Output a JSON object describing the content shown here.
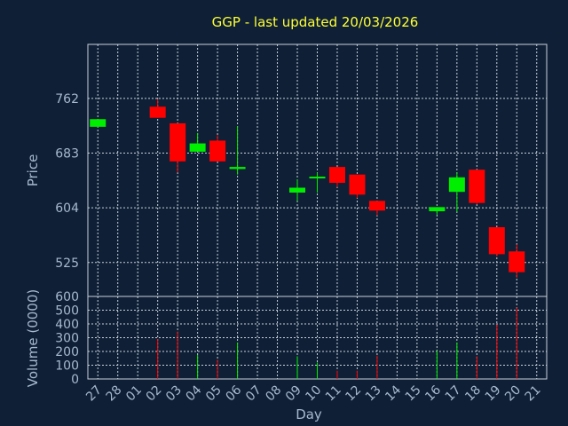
{
  "chart_data": {
    "type": "candlestick",
    "title": "GGP - last updated 20/03/2026",
    "ylabel_price": "Price",
    "ylabel_volume": "Volume (0000)",
    "xlabel": "Day",
    "price_ticks": [
      525,
      604,
      683,
      762
    ],
    "price_ylim": [
      476,
      840
    ],
    "volume_ticks": [
      0,
      100,
      200,
      300,
      400,
      500,
      600
    ],
    "volume_ylim": [
      0,
      600
    ],
    "x_ticks": [
      "27",
      "28",
      "01",
      "02",
      "03",
      "04",
      "05",
      "06",
      "07",
      "08",
      "09",
      "10",
      "11",
      "12",
      "13",
      "14",
      "15",
      "16",
      "17",
      "18",
      "19",
      "20",
      "21"
    ],
    "grid": true,
    "up_color": "#00ee00",
    "down_color": "#ff0000",
    "candles": [
      {
        "day": "27",
        "open": 721,
        "close": 732,
        "high": 732,
        "low": 721,
        "volume": 0
      },
      {
        "day": "02",
        "open": 750,
        "close": 734,
        "high": 761,
        "low": 734,
        "volume": 290
      },
      {
        "day": "03",
        "open": 726,
        "close": 671,
        "high": 726,
        "low": 655,
        "volume": 345
      },
      {
        "day": "04",
        "open": 685,
        "close": 697,
        "high": 712,
        "low": 685,
        "volume": 175
      },
      {
        "day": "05",
        "open": 701,
        "close": 671,
        "high": 709,
        "low": 671,
        "volume": 140
      },
      {
        "day": "06",
        "open": 660,
        "close": 663,
        "high": 722,
        "low": 652,
        "volume": 265
      },
      {
        "day": "09",
        "open": 626,
        "close": 633,
        "high": 645,
        "low": 614,
        "volume": 165
      },
      {
        "day": "10",
        "open": 647,
        "close": 649,
        "high": 655,
        "low": 626,
        "volume": 120
      },
      {
        "day": "11",
        "open": 663,
        "close": 640,
        "high": 663,
        "low": 634,
        "volume": 60
      },
      {
        "day": "12",
        "open": 652,
        "close": 623,
        "high": 652,
        "low": 618,
        "volume": 60
      },
      {
        "day": "13",
        "open": 614,
        "close": 600,
        "high": 614,
        "low": 593,
        "volume": 170
      },
      {
        "day": "16",
        "open": 599,
        "close": 605,
        "high": 605,
        "low": 594,
        "volume": 205
      },
      {
        "day": "17",
        "open": 627,
        "close": 648,
        "high": 655,
        "low": 598,
        "volume": 265
      },
      {
        "day": "18",
        "open": 659,
        "close": 611,
        "high": 659,
        "low": 609,
        "volume": 165
      },
      {
        "day": "19",
        "open": 576,
        "close": 537,
        "high": 576,
        "low": 534,
        "volume": 395
      },
      {
        "day": "20",
        "open": 541,
        "close": 511,
        "high": 551,
        "low": 503,
        "volume": 520
      }
    ]
  }
}
